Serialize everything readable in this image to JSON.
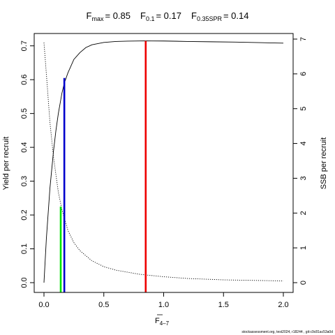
{
  "chart_data": {
    "type": "line",
    "title_parts": [
      {
        "symbol": "F",
        "sub": "max",
        "value": "= 0.85"
      },
      {
        "symbol": "F",
        "sub": "0.1",
        "value": "= 0.17"
      },
      {
        "symbol": "F",
        "sub": "0.35SPR",
        "value": "= 0.14"
      }
    ],
    "xlabel": {
      "symbol": "F",
      "sub": "4–7"
    },
    "ylabel_left": "Yield per recruit",
    "ylabel_right": "SSB per recruit",
    "xlim": [
      0,
      2.0
    ],
    "ylim_left": [
      0,
      0.72
    ],
    "ylim_right": [
      0,
      7
    ],
    "x_ticks": [
      0.0,
      0.5,
      1.0,
      1.5,
      2.0
    ],
    "x_tick_labels": [
      "0.0",
      "0.5",
      "1.0",
      "1.5",
      "2.0"
    ],
    "y_left_ticks": [
      0.0,
      0.1,
      0.2,
      0.3,
      0.4,
      0.5,
      0.6,
      0.7
    ],
    "y_left_tick_labels": [
      "0.0",
      "0.1",
      "0.2",
      "0.3",
      "0.4",
      "0.5",
      "0.6",
      "0.7"
    ],
    "y_right_ticks": [
      0,
      1,
      2,
      3,
      4,
      5,
      6,
      7
    ],
    "y_right_tick_labels": [
      "0",
      "1",
      "2",
      "3",
      "4",
      "5",
      "6",
      "7"
    ],
    "series": [
      {
        "axis": "left",
        "style": "solid",
        "x": [
          0,
          0.02,
          0.05,
          0.08,
          0.1,
          0.12,
          0.15,
          0.17,
          0.2,
          0.25,
          0.3,
          0.35,
          0.4,
          0.5,
          0.6,
          0.7,
          0.8,
          0.85,
          0.9,
          1.0,
          1.2,
          1.4,
          1.6,
          1.8,
          2.0
        ],
        "y": [
          0.0,
          0.13,
          0.28,
          0.39,
          0.45,
          0.5,
          0.56,
          0.59,
          0.62,
          0.66,
          0.68,
          0.695,
          0.703,
          0.71,
          0.713,
          0.714,
          0.7145,
          0.7146,
          0.7145,
          0.7143,
          0.713,
          0.712,
          0.711,
          0.7095,
          0.708
        ]
      },
      {
        "axis": "right",
        "style": "dotted",
        "x": [
          0,
          0.02,
          0.05,
          0.08,
          0.1,
          0.12,
          0.15,
          0.2,
          0.25,
          0.3,
          0.4,
          0.5,
          0.6,
          0.8,
          1.0,
          1.2,
          1.5,
          2.0
        ],
        "y": [
          6.9,
          6.0,
          4.6,
          3.6,
          3.1,
          2.6,
          2.1,
          1.5,
          1.15,
          0.92,
          0.63,
          0.46,
          0.36,
          0.24,
          0.17,
          0.12,
          0.08,
          0.05
        ]
      }
    ],
    "reference_lines": [
      {
        "x": 0.14,
        "ymax": 0.225,
        "color": "#00e600"
      },
      {
        "x": 0.17,
        "ymax": 0.605,
        "color": "#0000cc"
      },
      {
        "x": 0.85,
        "ymax": 0.7146,
        "color": "#ee0000"
      }
    ],
    "caption": "stockassessment.org, test2024, r18244 , git:c9c81ac53a0d"
  }
}
